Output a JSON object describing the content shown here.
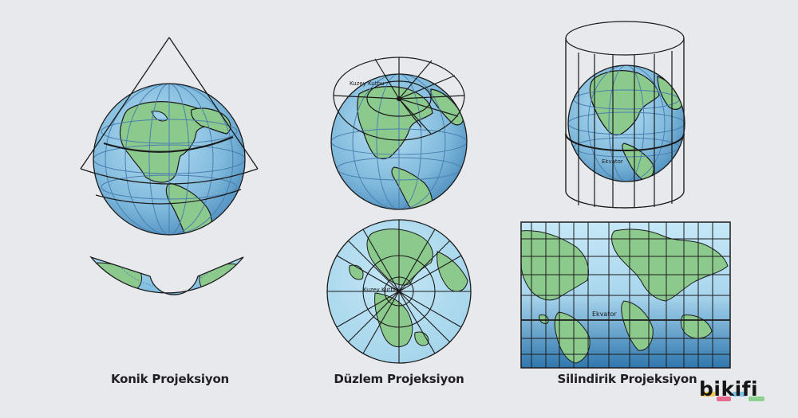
{
  "captions": {
    "conic": "Konik Projeksiyon",
    "planar": "Düzlem Projeksiyon",
    "cylindrical": "Silindirik Projeksiyon"
  },
  "labels": {
    "north_pole": "Kuzey Kutbu",
    "equator": "Ekvator"
  },
  "brand": {
    "name": "bikifi",
    "stripe_colors": [
      "#f2c94c",
      "#e66b8c",
      "#7dc4e4",
      "#8bd18f"
    ]
  },
  "colors": {
    "ocean": "#9dd0e8",
    "ocean_deep": "#3f86b6",
    "land": "#8cc98c",
    "outline": "#1b1b1b",
    "grid": "#4a7fb0"
  }
}
